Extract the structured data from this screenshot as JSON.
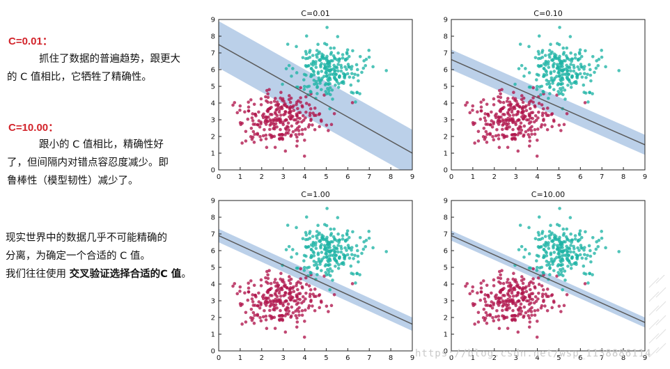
{
  "left": {
    "c001_label": "C=0.01：",
    "c001_line1": "抓住了数据的普遍趋势，跟更大",
    "c001_line2": "的 C 值相比，它牺牲了精确性。",
    "c10_label": "C=10.00：",
    "c10_line1": "跟小的 C 值相比，精确性好",
    "c10_line2": "了，但间隔内对错点容忍度减少。即",
    "c10_line3": "鲁棒性（模型韧性）减少了。",
    "real_line1": "现实世界中的数据几乎不可能精确的",
    "real_line2": "分离，为确定一个合适的 C 值。",
    "real_line3_prefix": "我们往往使用 ",
    "real_line3_bold": "交叉验证选择合适的C 值",
    "real_line3_suffix": "。"
  },
  "watermark": "https://blog.csdn.net/wsp_1138886114",
  "colors": {
    "red": "#b0144c",
    "teal": "#1fb3a5",
    "band": "#aac4e4",
    "line": "#5a5a5a"
  },
  "chart_data": [
    {
      "type": "scatter",
      "title": "C=0.01",
      "xlim": [
        0,
        9
      ],
      "ylim": [
        0,
        9
      ],
      "xticks": [
        "0",
        "1",
        "2",
        "3",
        "4",
        "5",
        "6",
        "7",
        "8",
        "9"
      ],
      "yticks": [
        "0",
        "1",
        "2",
        "3",
        "4",
        "5",
        "6",
        "7",
        "8",
        "9"
      ],
      "boundary": {
        "x": [
          0,
          9
        ],
        "y": [
          7.5,
          1.0
        ]
      },
      "margin": {
        "upper": {
          "x": [
            0,
            9
          ],
          "y": [
            8.9,
            2.4
          ]
        },
        "lower": {
          "x": [
            0,
            9
          ],
          "y": [
            6.1,
            -0.4
          ]
        }
      }
    },
    {
      "type": "scatter",
      "title": "C=0.10",
      "xlim": [
        0,
        9
      ],
      "ylim": [
        0,
        9
      ],
      "xticks": [
        "0",
        "1",
        "2",
        "3",
        "4",
        "5",
        "6",
        "7",
        "8",
        "9"
      ],
      "yticks": [
        "0",
        "1",
        "2",
        "3",
        "4",
        "5",
        "6",
        "7",
        "8",
        "9"
      ],
      "boundary": {
        "x": [
          0,
          9
        ],
        "y": [
          6.6,
          1.5
        ]
      },
      "margin": {
        "upper": {
          "x": [
            0,
            9
          ],
          "y": [
            7.2,
            2.1
          ]
        },
        "lower": {
          "x": [
            0,
            9
          ],
          "y": [
            6.0,
            0.9
          ]
        }
      }
    },
    {
      "type": "scatter",
      "title": "C=1.00",
      "xlim": [
        0,
        9
      ],
      "ylim": [
        0,
        9
      ],
      "xticks": [
        "0",
        "1",
        "2",
        "3",
        "4",
        "5",
        "6",
        "7",
        "8",
        "9"
      ],
      "yticks": [
        "0",
        "1",
        "2",
        "3",
        "4",
        "5",
        "6",
        "7",
        "8",
        "9"
      ],
      "boundary": {
        "x": [
          0,
          9
        ],
        "y": [
          6.9,
          1.6
        ]
      },
      "margin": {
        "upper": {
          "x": [
            0,
            9
          ],
          "y": [
            7.3,
            2.0
          ]
        },
        "lower": {
          "x": [
            0,
            9
          ],
          "y": [
            6.5,
            1.2
          ]
        }
      }
    },
    {
      "type": "scatter",
      "title": "C=10.00",
      "xlim": [
        0,
        9
      ],
      "ylim": [
        0,
        9
      ],
      "xticks": [
        "0",
        "1",
        "2",
        "3",
        "4",
        "5",
        "6",
        "7",
        "8",
        "9"
      ],
      "yticks": [
        "0",
        "1",
        "2",
        "3",
        "4",
        "5",
        "6",
        "7",
        "8",
        "9"
      ],
      "boundary": {
        "x": [
          0,
          9
        ],
        "y": [
          6.9,
          1.7
        ]
      },
      "margin": {
        "upper": {
          "x": [
            0,
            9
          ],
          "y": [
            7.2,
            2.0
          ]
        },
        "lower": {
          "x": [
            0,
            9
          ],
          "y": [
            6.6,
            1.4
          ]
        }
      }
    }
  ]
}
